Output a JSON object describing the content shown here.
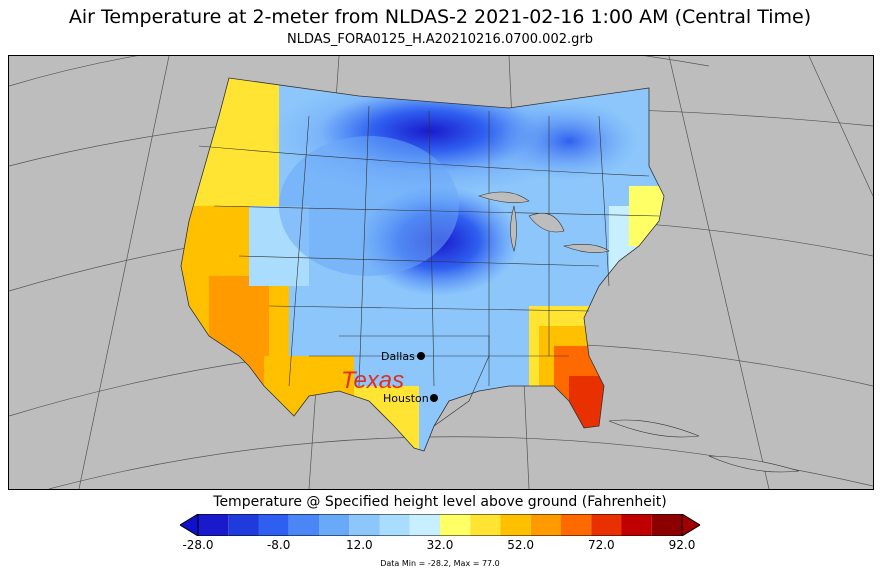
{
  "title": "Air Temperature at 2-meter from NLDAS-2 2021-02-16 1:00 AM (Central Time)",
  "subtitle": "NLDAS_FORA0125_H.A20210216.0700.002.grb",
  "map": {
    "state_label": "Texas",
    "state_label_color": "#e03020",
    "cities": [
      {
        "name": "Dallas"
      },
      {
        "name": "Houston"
      }
    ],
    "background_color": "#bdbdbd"
  },
  "legend": {
    "title": "Temperature @ Specified height level above ground (Fahrenheit)",
    "ticks": [
      "-28.0",
      "-8.0",
      "12.0",
      "32.0",
      "52.0",
      "72.0",
      "92.0"
    ],
    "colors": [
      "#1a1acc",
      "#1f3bdc",
      "#2f5ff0",
      "#4a86f5",
      "#6aa8f8",
      "#8cc6fb",
      "#a9dcfd",
      "#c8effe",
      "#ffff66",
      "#ffe433",
      "#ffc000",
      "#ff9a00",
      "#ff6a00",
      "#e83000",
      "#c00000",
      "#8c0000"
    ],
    "under_color": "#1010cc",
    "over_color": "#a00000",
    "stats": "Data Min = -28.2, Max = 77.0"
  }
}
